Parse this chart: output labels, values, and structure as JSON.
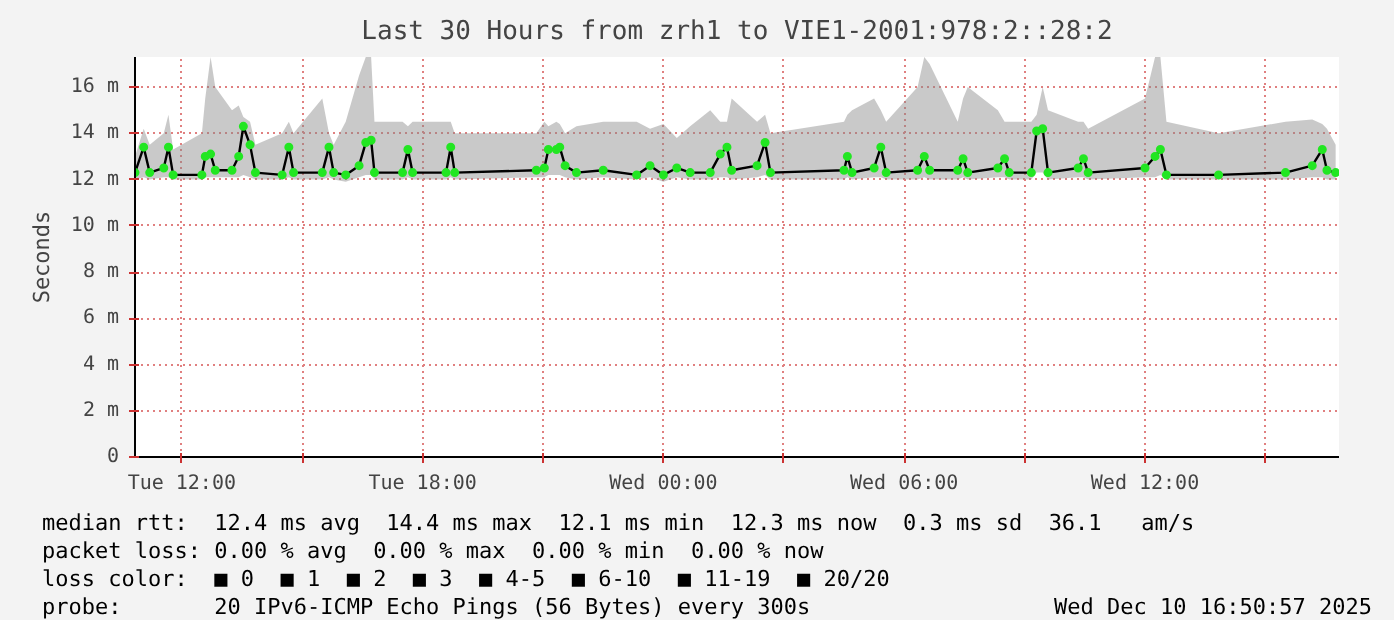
{
  "chart_data": {
    "type": "line",
    "title": "Last 30 Hours from zrh1 to VIE1-2001:978:2::28:2",
    "ylabel": "Seconds",
    "xlim": [
      "2025-12-09T10:50",
      "2025-12-10T16:50"
    ],
    "ylim": [
      0,
      17.3
    ],
    "xticks": [
      {
        "value": "2025-12-09T12:00",
        "label": "Tue 12:00"
      },
      {
        "value": "2025-12-09T15:00",
        "label": null
      },
      {
        "value": "2025-12-09T18:00",
        "label": "Tue 18:00"
      },
      {
        "value": "2025-12-09T21:00",
        "label": null
      },
      {
        "value": "2025-12-10T00:00",
        "label": "Wed 00:00"
      },
      {
        "value": "2025-12-10T03:00",
        "label": null
      },
      {
        "value": "2025-12-10T06:00",
        "label": "Wed 06:00"
      },
      {
        "value": "2025-12-10T09:00",
        "label": null
      },
      {
        "value": "2025-12-10T12:00",
        "label": "Wed 12:00"
      },
      {
        "value": "2025-12-10T15:00",
        "label": null
      }
    ],
    "yticks": [
      0,
      {
        "value": 2,
        "label": "2 m"
      },
      {
        "value": 4,
        "label": "4 m"
      },
      {
        "value": 6,
        "label": "6 m"
      },
      {
        "value": 8,
        "label": "8 m"
      },
      {
        "value": 10,
        "label": "10 m"
      },
      {
        "value": 12,
        "label": "12 m"
      },
      {
        "value": 14,
        "label": "14 m"
      },
      {
        "value": 16,
        "label": "16 m"
      }
    ],
    "grid": true,
    "marker": "circle",
    "line_style": "solid",
    "series": [
      {
        "color": "#22e622",
        "x": [
          "2025-12-09T10:50",
          "2025-12-09T11:03",
          "2025-12-09T11:12",
          "2025-12-09T11:33",
          "2025-12-09T11:40",
          "2025-12-09T11:47",
          "2025-12-09T12:30",
          "2025-12-09T12:35",
          "2025-12-09T12:43",
          "2025-12-09T12:50",
          "2025-12-09T13:15",
          "2025-12-09T13:25",
          "2025-12-09T13:32",
          "2025-12-09T13:42",
          "2025-12-09T13:50",
          "2025-12-09T14:30",
          "2025-12-09T14:40",
          "2025-12-09T14:47",
          "2025-12-09T15:30",
          "2025-12-09T15:40",
          "2025-12-09T15:47",
          "2025-12-09T16:05",
          "2025-12-09T16:25",
          "2025-12-09T16:35",
          "2025-12-09T16:43",
          "2025-12-09T16:48",
          "2025-12-09T17:30",
          "2025-12-09T17:38",
          "2025-12-09T17:45",
          "2025-12-09T18:35",
          "2025-12-09T18:42",
          "2025-12-09T18:48",
          "2025-12-09T20:50",
          "2025-12-09T21:02",
          "2025-12-09T21:08",
          "2025-12-09T21:20",
          "2025-12-09T21:25",
          "2025-12-09T21:33",
          "2025-12-09T21:50",
          "2025-12-09T22:30",
          "2025-12-09T23:20",
          "2025-12-09T23:40",
          "2025-12-10T00:00",
          "2025-12-10T00:20",
          "2025-12-10T00:40",
          "2025-12-10T01:10",
          "2025-12-10T01:25",
          "2025-12-10T01:35",
          "2025-12-10T01:42",
          "2025-12-10T02:20",
          "2025-12-10T02:32",
          "2025-12-10T02:40",
          "2025-12-10T04:30",
          "2025-12-10T04:35",
          "2025-12-10T04:42",
          "2025-12-10T05:15",
          "2025-12-10T05:25",
          "2025-12-10T05:33",
          "2025-12-10T06:20",
          "2025-12-10T06:30",
          "2025-12-10T06:38",
          "2025-12-10T07:20",
          "2025-12-10T07:28",
          "2025-12-10T07:35",
          "2025-12-10T08:20",
          "2025-12-10T08:30",
          "2025-12-10T08:37",
          "2025-12-10T09:10",
          "2025-12-10T09:18",
          "2025-12-10T09:27",
          "2025-12-10T09:35",
          "2025-12-10T10:20",
          "2025-12-10T10:28",
          "2025-12-10T10:35",
          "2025-12-10T12:00",
          "2025-12-10T12:15",
          "2025-12-10T12:23",
          "2025-12-10T12:32",
          "2025-12-10T13:50",
          "2025-12-10T15:30",
          "2025-12-10T16:10",
          "2025-12-10T16:25",
          "2025-12-10T16:32",
          "2025-12-10T16:45"
        ],
        "values": [
          12.3,
          13.4,
          12.3,
          12.5,
          13.4,
          12.2,
          12.2,
          13.0,
          13.1,
          12.4,
          12.4,
          13.0,
          14.3,
          13.5,
          12.3,
          12.2,
          13.4,
          12.3,
          12.3,
          13.4,
          12.3,
          12.2,
          12.6,
          13.6,
          13.7,
          12.3,
          12.3,
          13.3,
          12.3,
          12.3,
          13.4,
          12.3,
          12.4,
          12.5,
          13.3,
          13.3,
          13.4,
          12.6,
          12.3,
          12.4,
          12.2,
          12.6,
          12.2,
          12.5,
          12.3,
          12.3,
          13.1,
          13.4,
          12.4,
          12.6,
          13.6,
          12.3,
          12.4,
          13.0,
          12.3,
          12.5,
          13.4,
          12.3,
          12.4,
          13.0,
          12.4,
          12.4,
          12.9,
          12.3,
          12.5,
          12.9,
          12.3,
          12.3,
          14.1,
          14.2,
          12.3,
          12.5,
          12.9,
          12.3,
          12.5,
          13.0,
          13.3,
          12.2,
          12.2,
          12.3,
          12.6,
          13.3,
          12.4,
          12.3
        ],
        "lower": [
          12.0,
          12.1,
          12.0,
          12.1,
          12.1,
          12.0,
          12.0,
          12.1,
          12.1,
          12.1,
          12.1,
          12.1,
          12.2,
          12.1,
          12.0,
          12.0,
          12.1,
          12.0,
          12.0,
          12.1,
          12.0,
          11.9,
          12.1,
          12.2,
          12.2,
          12.0,
          12.0,
          12.1,
          12.0,
          12.0,
          12.1,
          12.0,
          12.1,
          12.1,
          12.2,
          12.2,
          12.2,
          12.1,
          12.0,
          12.1,
          12.0,
          12.1,
          11.9,
          12.1,
          12.0,
          12.0,
          12.1,
          12.1,
          12.0,
          12.1,
          12.2,
          12.0,
          12.0,
          12.1,
          12.0,
          12.1,
          12.1,
          12.0,
          12.0,
          12.1,
          12.0,
          12.0,
          12.1,
          12.0,
          12.1,
          12.1,
          12.0,
          12.0,
          12.3,
          12.3,
          12.0,
          12.1,
          12.1,
          12.0,
          12.1,
          12.1,
          12.2,
          12.0,
          12.0,
          12.0,
          12.1,
          12.1,
          12.0,
          12.0
        ],
        "upper": [
          13.0,
          14.2,
          13.5,
          14.0,
          14.8,
          13.3,
          14.0,
          15.5,
          17.3,
          16.0,
          15.0,
          15.2,
          14.7,
          14.5,
          13.5,
          14.0,
          14.5,
          14.0,
          15.5,
          14.0,
          13.5,
          14.5,
          16.5,
          17.3,
          17.3,
          14.5,
          14.5,
          14.3,
          14.5,
          14.5,
          14.5,
          14.0,
          14.0,
          14.5,
          14.3,
          14.5,
          14.4,
          14.0,
          14.3,
          14.5,
          14.5,
          14.2,
          14.4,
          13.8,
          14.3,
          15.0,
          14.5,
          14.5,
          15.5,
          14.5,
          14.8,
          14.0,
          14.5,
          14.8,
          15.0,
          15.5,
          15.0,
          14.5,
          16.0,
          17.3,
          17.0,
          14.5,
          15.5,
          16.0,
          15.0,
          14.5,
          14.5,
          14.5,
          14.8,
          16.0,
          15.0,
          14.5,
          14.5,
          14.2,
          15.5,
          17.3,
          17.3,
          14.5,
          14.0,
          14.5,
          14.6,
          14.4,
          14.2,
          13.5
        ]
      }
    ],
    "annotations": [
      "median rtt:  12.4 ms avg  14.4 ms max  12.1 ms min  12.3 ms now  0.3 ms sd  36.1   am/s",
      "packet loss: 0.00 % avg  0.00 % max  0.00 % min  0.00 % now",
      "loss color:  ■ 0  ■ 1  ■ 2  ■ 3  ■ 4-5  ■ 6-10  ■ 11-19  ■ 20/20",
      "probe:       20 IPv6-ICMP Echo Pings (56 Bytes) every 300s",
      "Wed Dec 10 16:50:57 2025"
    ]
  }
}
